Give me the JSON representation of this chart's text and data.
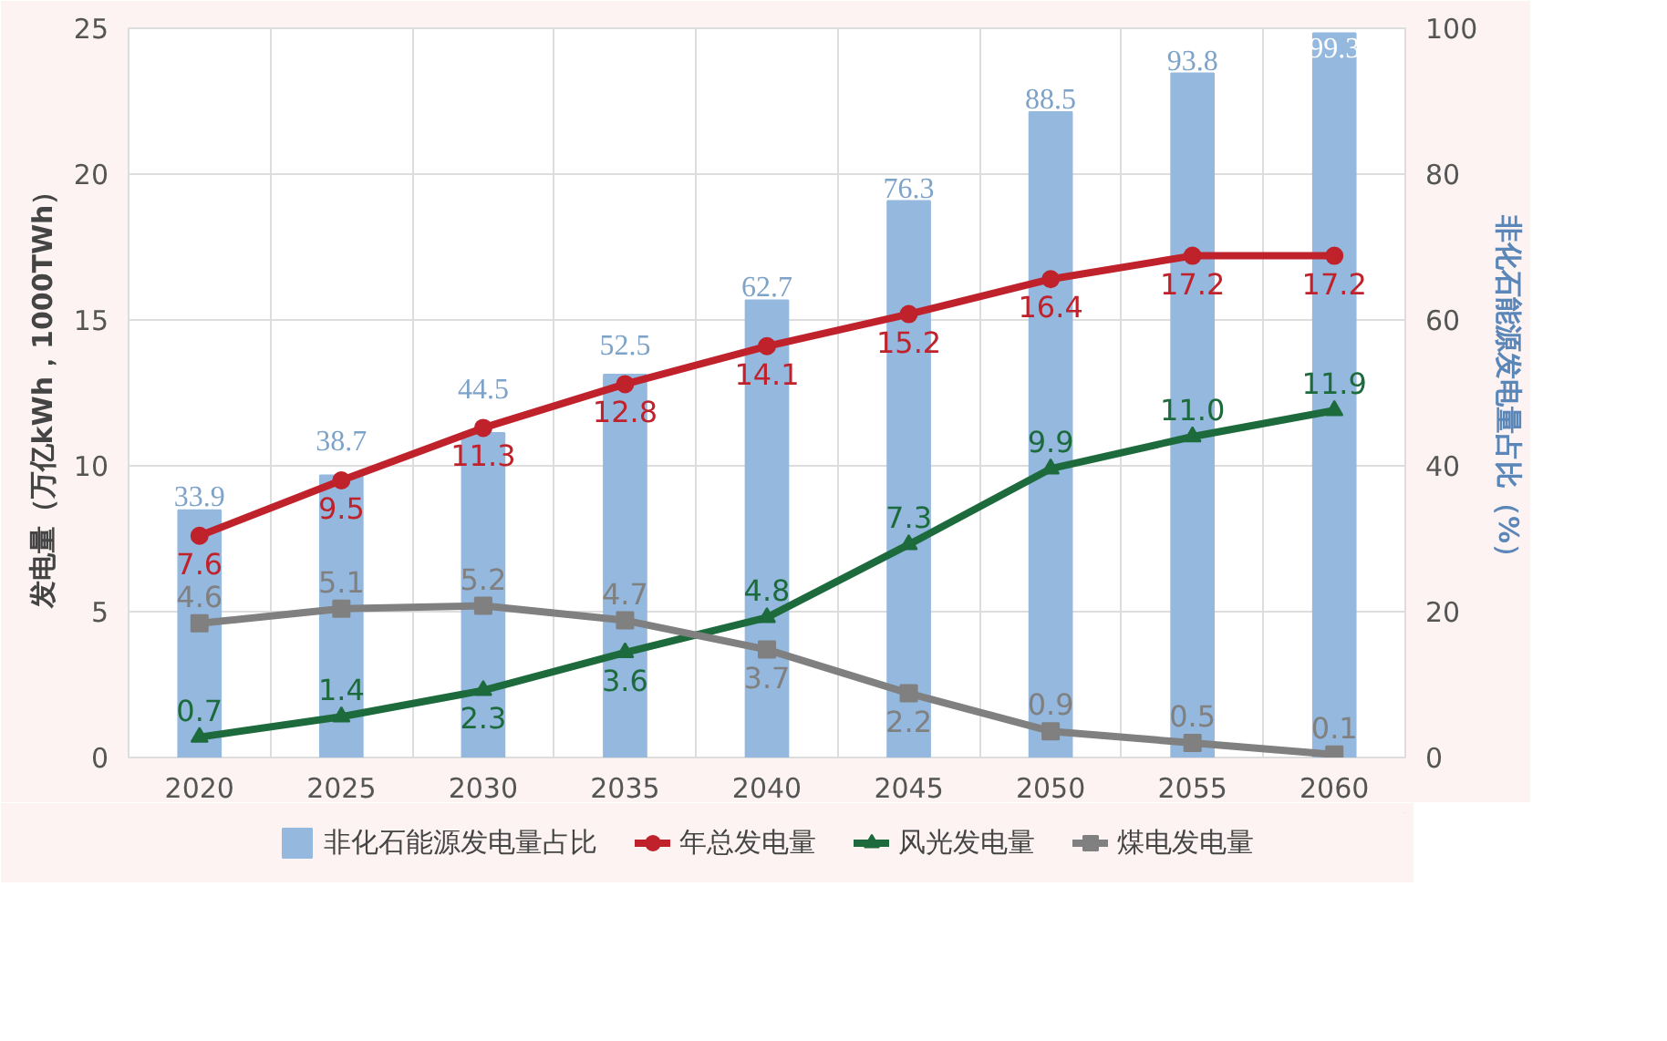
{
  "chart_data": {
    "type": "line",
    "categories": [
      "2020",
      "2025",
      "2030",
      "2035",
      "2040",
      "2045",
      "2050",
      "2055",
      "2060"
    ],
    "ylabel": "发电量（万亿kWh，1000TWh）",
    "y2label": "非化石能源发电量占比（%）",
    "ylim": [
      0,
      25
    ],
    "yticks": [
      0,
      5,
      10,
      15,
      20,
      25
    ],
    "y2lim": [
      0,
      100
    ],
    "y2ticks": [
      0,
      20,
      40,
      60,
      80,
      100
    ],
    "grid": true,
    "legend": "bottom",
    "data_labels": true,
    "series": [
      {
        "name": "非化石能源发电量占比",
        "type": "bar",
        "axis": "y2",
        "color": "#94b8de",
        "values": [
          33.9,
          38.7,
          44.5,
          52.5,
          62.7,
          76.3,
          88.5,
          93.8,
          99.3
        ]
      },
      {
        "name": "年总发电量",
        "marker": "circle",
        "color": "#c0222c",
        "values": [
          7.6,
          9.5,
          11.3,
          12.8,
          14.1,
          15.2,
          16.4,
          17.2,
          17.2
        ]
      },
      {
        "name": "风光发电量",
        "marker": "triangle",
        "color": "#1d6b3c",
        "values": [
          0.7,
          1.4,
          2.3,
          3.6,
          4.8,
          7.3,
          9.9,
          11.0,
          11.9
        ],
        "value_labels": [
          "0.7",
          "1.4",
          "2.3",
          "3.6",
          "4.8",
          "7.3",
          "9.9",
          "11.0",
          "11.9"
        ]
      },
      {
        "name": "煤电发电量",
        "marker": "square",
        "color": "#808080",
        "values": [
          4.6,
          5.1,
          5.2,
          4.7,
          3.7,
          2.2,
          0.9,
          0.5,
          0.1
        ]
      }
    ]
  }
}
